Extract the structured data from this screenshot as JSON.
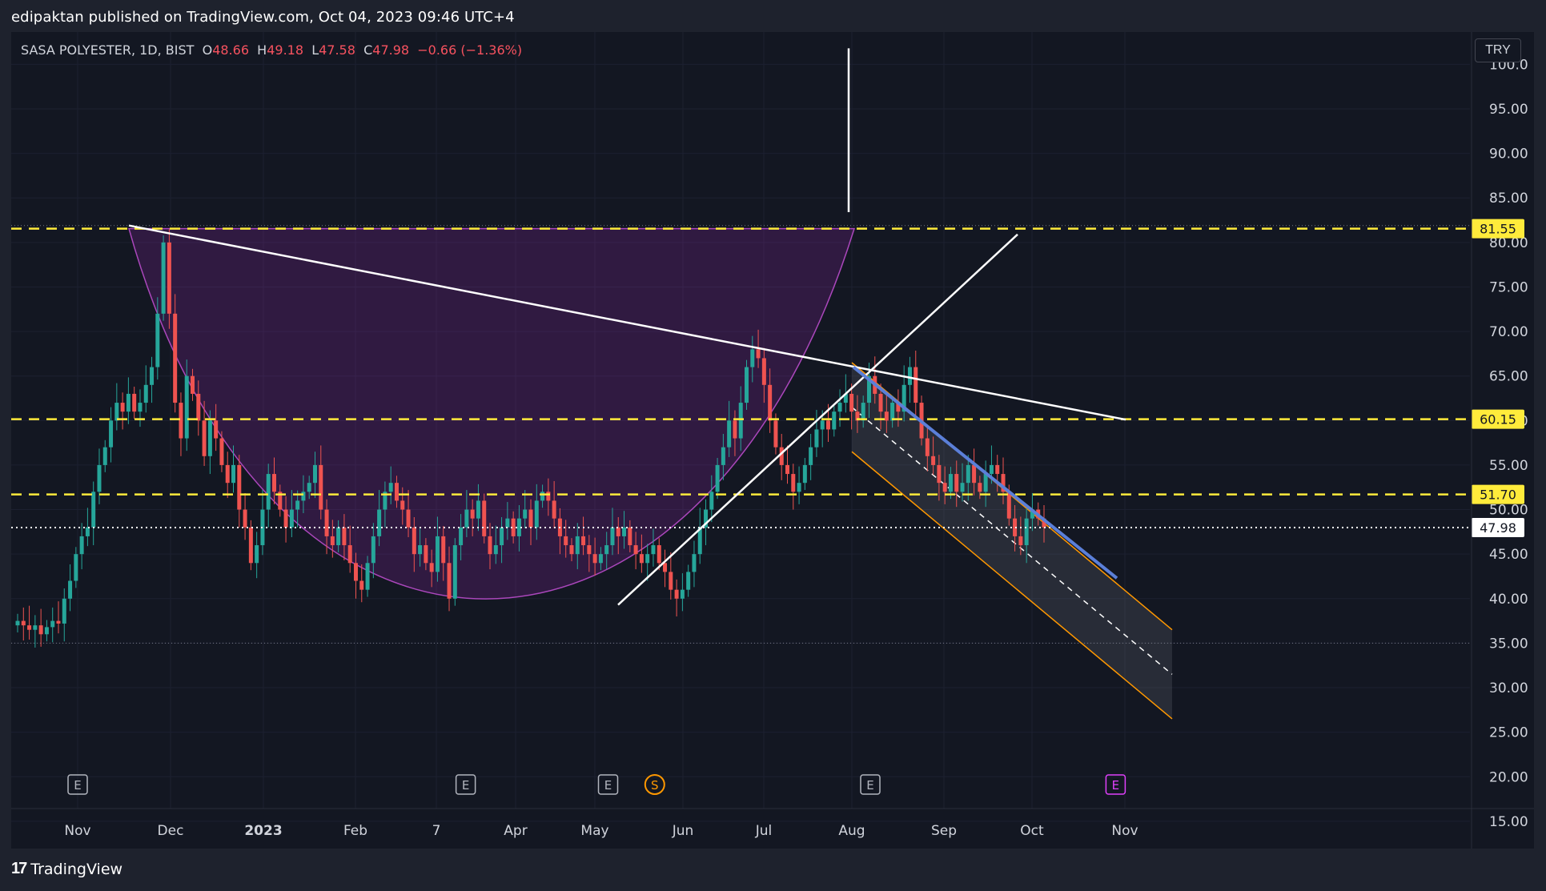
{
  "header": {
    "publisher": "edipaktan published on TradingView.com, Oct 04, 2023 09:46 UTC+4"
  },
  "legend": {
    "symbol": "SASA POLYESTER, 1D, BIST",
    "o_label": "O",
    "o": "48.66",
    "h_label": "H",
    "h": "49.18",
    "l_label": "L",
    "l": "47.58",
    "c_label": "C",
    "c": "47.98",
    "change": "−0.66 (−1.36%)"
  },
  "currency": "TRY",
  "footer": {
    "brand": "TradingView",
    "logo": "17"
  },
  "colors": {
    "up": "#26a69a",
    "down": "#ef5350",
    "bg": "#131722",
    "frame": "#1e222d",
    "level": "#ffeb3b",
    "cup": "#9c27b0",
    "channel": "#ff9800",
    "trend": "#ffffff",
    "channel_top": "#5b7fd8"
  },
  "chart_data": {
    "type": "candlestick",
    "symbol": "SASA POLYESTER",
    "interval": "1D",
    "exchange": "BIST",
    "ylim": [
      14,
      103
    ],
    "y_ticks": [
      "100.0",
      "95.00",
      "90.00",
      "85.00",
      "80.00",
      "75.00",
      "70.00",
      "65.00",
      "60.00",
      "55.00",
      "50.00",
      "45.00",
      "40.00",
      "35.00",
      "30.00",
      "25.00",
      "20.00",
      "15.00"
    ],
    "x_ticks": [
      "Nov",
      "Dec",
      "2023",
      "Feb",
      "7",
      "Apr",
      "May",
      "Jun",
      "Jul",
      "Aug",
      "Sep",
      "Oct",
      "Nov"
    ],
    "price_levels": [
      {
        "label": "81.55",
        "value": 81.55
      },
      {
        "label": "60.15",
        "value": 60.15
      },
      {
        "label": "51.70",
        "value": 51.7
      }
    ],
    "last_price": {
      "label": "47.98",
      "value": 47.98
    },
    "events": [
      {
        "label": "E",
        "month_index": 0,
        "offset": 0
      },
      {
        "label": "E",
        "month_index": 4,
        "offset": 0.37
      },
      {
        "label": "E",
        "month_index": 6,
        "offset": 0.15
      },
      {
        "label": "S",
        "month_index": 6,
        "offset": 0.68
      },
      {
        "label": "E",
        "month_index": 9,
        "offset": 0.2
      },
      {
        "label": "E",
        "month_index": 11,
        "offset": 0.9
      }
    ],
    "close_series": [
      37.5,
      37.0,
      36.5,
      37.0,
      36.0,
      36.8,
      37.5,
      37.2,
      40,
      42,
      45,
      47,
      48,
      52,
      55,
      57,
      60,
      62,
      61,
      63,
      61,
      62,
      64,
      66,
      72,
      80,
      72,
      62,
      58,
      65,
      63,
      60,
      56,
      60,
      58,
      55,
      53,
      55,
      50,
      48,
      44,
      46,
      50,
      54,
      52,
      50,
      48,
      50,
      51,
      52,
      53,
      55,
      50,
      47,
      46,
      48,
      46,
      44,
      42,
      41,
      44,
      47,
      50,
      52,
      53,
      51,
      50,
      48,
      45,
      46,
      44,
      43,
      47,
      44,
      40,
      46,
      48,
      50,
      49,
      51,
      47,
      45,
      46,
      48,
      49,
      47,
      49,
      50,
      48,
      51,
      52,
      51,
      49,
      47,
      46,
      45,
      47,
      46,
      45,
      44,
      45,
      46,
      48,
      47,
      48,
      46,
      45,
      44,
      45,
      46,
      44,
      43,
      41,
      40,
      41,
      43,
      45,
      48,
      50,
      52,
      55,
      57,
      60,
      58,
      62,
      66,
      68,
      67,
      64,
      60,
      57,
      55,
      54,
      52,
      53,
      55,
      57,
      59,
      60,
      59,
      61,
      62,
      63,
      61,
      60,
      62,
      65,
      63,
      61,
      60,
      62,
      61,
      64,
      66,
      62,
      58,
      56,
      55,
      53,
      52,
      54,
      52,
      53,
      55,
      53,
      52,
      54,
      55,
      54,
      52,
      49,
      47,
      46,
      49,
      50,
      49,
      48
    ]
  }
}
